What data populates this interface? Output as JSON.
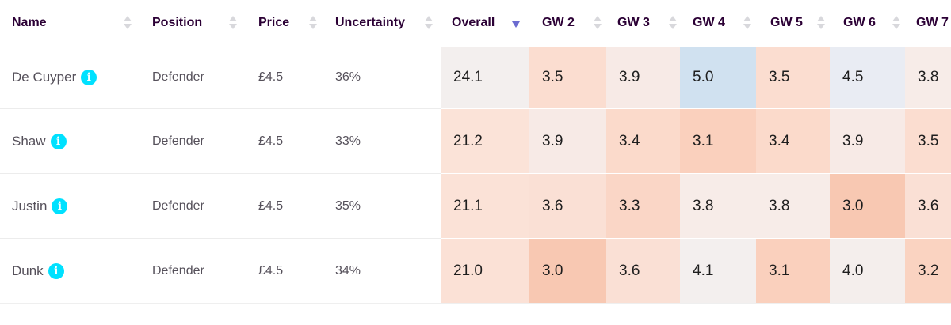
{
  "columns": [
    {
      "key": "name",
      "label": "Name"
    },
    {
      "key": "position",
      "label": "Position"
    },
    {
      "key": "price",
      "label": "Price"
    },
    {
      "key": "uncertainty",
      "label": "Uncertainty"
    },
    {
      "key": "overall",
      "label": "Overall",
      "sorted": "descending"
    },
    {
      "key": "gw2",
      "label": "GW 2"
    },
    {
      "key": "gw3",
      "label": "GW 3"
    },
    {
      "key": "gw4",
      "label": "GW 4"
    },
    {
      "key": "gw5",
      "label": "GW 5"
    },
    {
      "key": "gw6",
      "label": "GW 6"
    },
    {
      "key": "gw7",
      "label": "GW 7"
    }
  ],
  "info_icon_glyph": "i",
  "colors": {
    "info_icon": "#00e1ff",
    "sort_active": "#6b6bd0",
    "heat_low": "#fac6b0",
    "heat_mid": "#f4eeec",
    "heat_high": "#cfe1f1"
  },
  "rows": [
    {
      "name": "De Cuyper",
      "position": "Defender",
      "price": "£4.5",
      "uncertainty": "36%",
      "overall": "24.1",
      "gw": [
        "3.5",
        "3.9",
        "5.0",
        "3.5",
        "4.5",
        "3.8"
      ],
      "overall_color": "#f3efee",
      "gw_colors": [
        "#fbddd0",
        "#f7eae6",
        "#d0e1f0",
        "#fbddd0",
        "#e9ecf3",
        "#f7ece8"
      ]
    },
    {
      "name": "Shaw",
      "position": "Defender",
      "price": "£4.5",
      "uncertainty": "33%",
      "overall": "21.2",
      "gw": [
        "3.9",
        "3.4",
        "3.1",
        "3.4",
        "3.9",
        "3.5"
      ],
      "overall_color": "#fbe3d8",
      "gw_colors": [
        "#f7eae6",
        "#fbdacb",
        "#fad0bd",
        "#fbdacb",
        "#f7eae6",
        "#fbddd0"
      ]
    },
    {
      "name": "Justin",
      "position": "Defender",
      "price": "£4.5",
      "uncertainty": "35%",
      "overall": "21.1",
      "gw": [
        "3.6",
        "3.3",
        "3.8",
        "3.8",
        "3.0",
        "3.6"
      ],
      "overall_color": "#fbe2d7",
      "gw_colors": [
        "#fae0d5",
        "#fad6c6",
        "#f7ece8",
        "#f7ece8",
        "#f8c8b2",
        "#fae0d5"
      ]
    },
    {
      "name": "Dunk",
      "position": "Defender",
      "price": "£4.5",
      "uncertainty": "34%",
      "overall": "21.0",
      "gw": [
        "3.0",
        "3.6",
        "4.1",
        "3.1",
        "4.0",
        "3.2"
      ],
      "overall_color": "#fbe1d6",
      "gw_colors": [
        "#f8c8b2",
        "#fae0d5",
        "#f3efee",
        "#fad0bd",
        "#f4eeec",
        "#fad3c1"
      ]
    }
  ]
}
